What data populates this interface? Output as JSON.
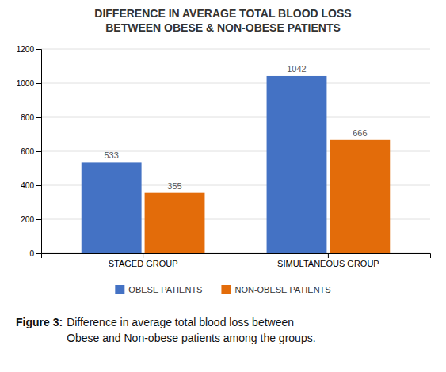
{
  "chart_data": {
    "type": "bar",
    "title": "DIFFERENCE IN AVERAGE TOTAL BLOOD LOSS\nBETWEEN OBESE & NON-OBESE PATIENTS",
    "categories": [
      "STAGED GROUP",
      "SIMULTANEOUS GROUP"
    ],
    "series": [
      {
        "name": "OBESE PATIENTS",
        "color": "#4472C4",
        "values": [
          533,
          1042
        ]
      },
      {
        "name": "NON-OBESE PATIENTS",
        "color": "#E36C0A",
        "values": [
          355,
          666
        ]
      }
    ],
    "ylim": [
      0,
      1200
    ],
    "yticks": [
      0,
      200,
      400,
      600,
      800,
      1000,
      1200
    ],
    "grid": true,
    "data_labels": true,
    "legend": "bottom",
    "annotations": [
      "Figure 3:",
      "Difference in average total blood loss between\nObese and Non-obese patients among the groups."
    ]
  }
}
